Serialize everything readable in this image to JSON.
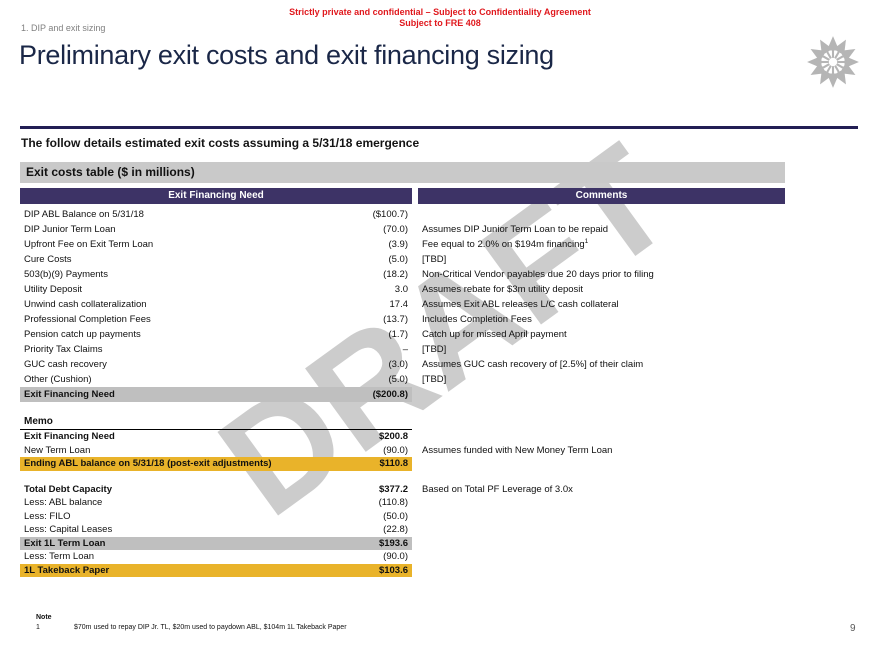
{
  "header": {
    "confidential_line1": "Strictly private and confidential – Subject to Confidentiality Agreement",
    "confidential_line2": "Subject to FRE 408",
    "section_label": "1. DIP and exit sizing",
    "title": "Preliminary exit costs and exit financing sizing"
  },
  "watermark": "DRAFT",
  "lead": "The follow details estimated exit costs assuming a 5/31/18 emergence",
  "table": {
    "banner": "Exit costs table ($ in millions)",
    "col_left": "Exit Financing Need",
    "col_right": "Comments",
    "rows": [
      {
        "label": "DIP ABL Balance on 5/31/18",
        "value": "($100.7)",
        "comment": ""
      },
      {
        "label": "DIP Junior Term Loan",
        "value": "(70.0)",
        "comment": "Assumes DIP Junior Term Loan to be repaid"
      },
      {
        "label": "Upfront Fee on Exit Term Loan",
        "value": "(3.9)",
        "comment": "Fee equal to 2.0% on $194m financing",
        "comment_sup": "1"
      },
      {
        "label": "Cure Costs",
        "value": "(5.0)",
        "comment": "[TBD]"
      },
      {
        "label": "503(b)(9) Payments",
        "value": "(18.2)",
        "comment": "Non-Critical Vendor payables due 20 days prior to filing"
      },
      {
        "label": "Utility Deposit",
        "value": "3.0",
        "comment": "Assumes rebate for $3m utility deposit"
      },
      {
        "label": "Unwind cash collateralization",
        "value": "17.4",
        "comment": "Assumes Exit ABL releases L/C cash collateral"
      },
      {
        "label": "Professional Completion Fees",
        "value": "(13.7)",
        "comment": "Includes Completion Fees"
      },
      {
        "label": "Pension catch up payments",
        "value": "(1.7)",
        "comment": "Catch up for missed April payment"
      },
      {
        "label": "Priority Tax Claims",
        "value": "–",
        "comment": "[TBD]"
      },
      {
        "label": "GUC cash recovery",
        "value": "(3.0)",
        "comment": "Assumes GUC cash recovery of [2.5%] of their claim"
      },
      {
        "label": "Other (Cushion)",
        "value": "(5.0)",
        "comment": "[TBD]"
      },
      {
        "label": "Exit Financing Need",
        "value": "($200.8)",
        "comment": "",
        "style": "total-gray"
      }
    ]
  },
  "memo": {
    "title": "Memo",
    "rows": [
      {
        "label": "Exit Financing Need",
        "value": "$200.8",
        "comment": "",
        "style": "bold"
      },
      {
        "label": "New Term Loan",
        "value": "(90.0)",
        "comment": "Assumes funded with New Money Term Loan"
      },
      {
        "label": "Ending ABL balance on 5/31/18 (post-exit adjustments)",
        "value": "$110.8",
        "comment": "",
        "style": "total-yellow"
      },
      {
        "spacer": true
      },
      {
        "label": "Total Debt Capacity",
        "value": "$377.2",
        "comment": "Based on Total PF Leverage of 3.0x",
        "style": "bold"
      },
      {
        "label": "Less: ABL balance",
        "value": "(110.8)",
        "comment": ""
      },
      {
        "label": "Less: FILO",
        "value": "(50.0)",
        "comment": ""
      },
      {
        "label": "Less: Capital Leases",
        "value": "(22.8)",
        "comment": ""
      },
      {
        "label": "Exit 1L Term Loan",
        "value": "$193.6",
        "comment": "",
        "style": "total-gray"
      },
      {
        "label": "Less: Term Loan",
        "value": "(90.0)",
        "comment": ""
      },
      {
        "label": "1L Takeback Paper",
        "value": "$103.6",
        "comment": "",
        "style": "total-yellow"
      }
    ]
  },
  "footnote": {
    "heading": "Note",
    "number": "1",
    "text": "$70m used to repay DIP Jr. TL, $20m used to paydown ABL, $104m 1L Takeback Paper"
  },
  "page_number": "9",
  "colors": {
    "header_purple": "#3D3366",
    "banner_gray": "#C9C9C9",
    "total_row_gray": "#BFBFBF",
    "highlight_yellow": "#E9B32A",
    "confidential_red": "#E0191E",
    "title_navy": "#1A2747",
    "rule_navy": "#221E54",
    "watermark_gray": "#C4C4C4"
  }
}
